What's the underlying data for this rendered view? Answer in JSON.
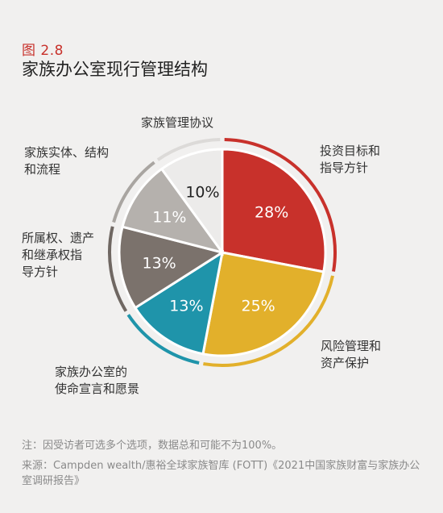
{
  "figure_label": "图 2.8",
  "figure_title": "家族办公室现行管理结构",
  "chart_data": {
    "type": "pie",
    "categories": [
      "投资目标和指导方针",
      "风险管理和资产保护",
      "家族办公室的使命宣言和愿景",
      "所属权、遗产和继承权指导方针",
      "家族实体、结构和流程",
      "家族管理协议"
    ],
    "label_lines": [
      [
        "投资目标和",
        "指导方针"
      ],
      [
        "风险管理和",
        "资产保护"
      ],
      [
        "家族办公室的",
        "使命宣言和愿景"
      ],
      [
        "所属权、遗产",
        "和继承权指",
        "导方针"
      ],
      [
        "家族实体、结构",
        "和流程"
      ],
      [
        "家族管理协议"
      ]
    ],
    "values": [
      28,
      25,
      13,
      13,
      11,
      10
    ],
    "value_labels": [
      "28%",
      "25%",
      "13%",
      "13%",
      "11%",
      "10%"
    ],
    "colors": [
      "#c8312b",
      "#e2b02b",
      "#1f94aa",
      "#7b726c",
      "#b5b1ad",
      "#ecebea"
    ],
    "ring_colors": [
      "#c8312b",
      "#e2b02b",
      "#1f94aa",
      "#6f6762",
      "#a9a5a1",
      "#dcdad8"
    ],
    "value_text_colors": [
      "#ffffff",
      "#ffffff",
      "#ffffff",
      "#ffffff",
      "#ffffff",
      "#222222"
    ]
  },
  "note": "注：因受访者可选多个选项，数据总和可能不为100%。",
  "source": "来源：Campden wealth/惠裕全球家族智库 (FOTT)《2021中国家族财富与家族办公室调研报告》"
}
